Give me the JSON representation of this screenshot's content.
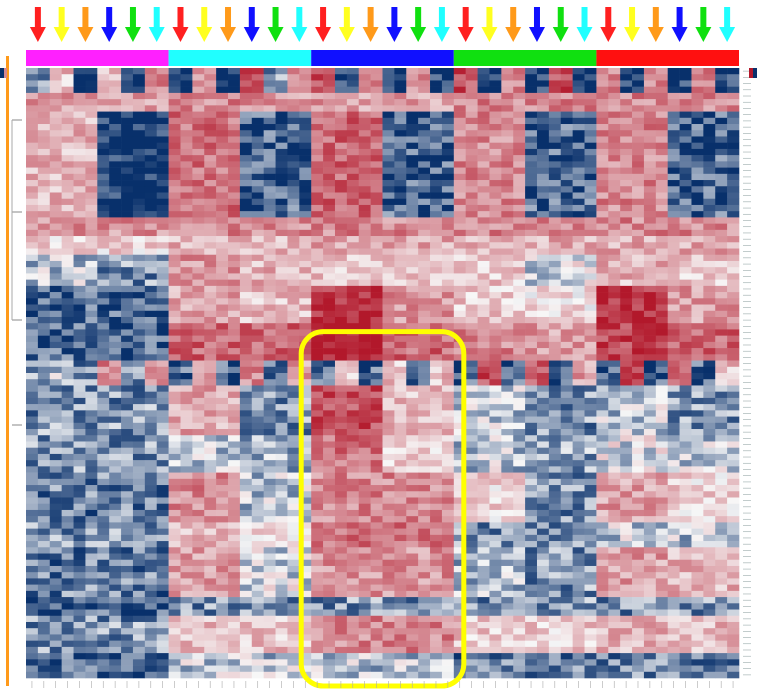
{
  "chart_data": {
    "type": "heatmap",
    "title": "",
    "xlabel": "",
    "ylabel": "",
    "colorscale": {
      "low": "#08306b",
      "mid": "#f7f7f7",
      "high": "#b2182b",
      "range": [
        -2,
        2
      ]
    },
    "arrow_sequence": [
      "red",
      "yellow",
      "orange",
      "blue",
      "green",
      "cyan"
    ],
    "arrow_colors": {
      "red": "#ff2020",
      "yellow": "#ffff20",
      "orange": "#ff9a1a",
      "blue": "#1010ff",
      "green": "#10e010",
      "cyan": "#20ffff"
    },
    "column_groups": [
      {
        "color": "#ff20ff",
        "count": 6
      },
      {
        "color": "#20ffff",
        "count": 6
      },
      {
        "color": "#1010ff",
        "count": 6
      },
      {
        "color": "#10e010",
        "count": 6
      },
      {
        "color": "#ff1010",
        "count": 6
      }
    ],
    "row_cluster_bar_color": "#ff9a1a",
    "highlight": {
      "color": "#ffff00",
      "group_index": 2,
      "row_range_fraction": [
        0.455,
        1.0
      ]
    },
    "bands": [
      {
        "rows": 4,
        "p": [
          [
            -1,
            0.5,
            -2,
            0.5,
            -2,
            1
          ],
          [
            -2,
            1,
            -2,
            1.5,
            -1,
            1
          ],
          [
            1.5,
            -2,
            1,
            -2,
            1,
            -2
          ],
          [
            1.5,
            -2,
            1,
            -2,
            1.5,
            -2
          ],
          [
            1,
            -2,
            1,
            -2,
            1,
            -2
          ]
        ]
      },
      {
        "rows": 3,
        "p": [
          [
            0.8,
            0.8,
            0.8,
            0.8,
            0.8,
            0.8
          ],
          [
            1,
            1,
            1,
            1,
            0.8,
            0.8
          ],
          [
            0.8,
            0.8,
            0.8,
            0.8,
            0.8,
            0.8
          ],
          [
            1,
            1,
            1,
            1,
            1,
            1
          ],
          [
            1,
            1,
            1,
            1,
            1,
            1
          ]
        ]
      },
      {
        "rows": 17,
        "p": [
          [
            0.6,
            0.6,
            0.6,
            -2,
            -2,
            -2
          ],
          [
            1.2,
            1.2,
            1.2,
            -1.5,
            -1.5,
            -1.5
          ],
          [
            1.3,
            1.3,
            1.3,
            -1.5,
            -1.5,
            -1.5
          ],
          [
            1,
            1,
            1,
            -1.5,
            -1.5,
            -1.5
          ],
          [
            1,
            1,
            1,
            -1.5,
            -1.5,
            -1.5
          ]
        ]
      },
      {
        "rows": 3,
        "p": [
          [
            0.9,
            0.9,
            0.9,
            0.9,
            0.9,
            0.9
          ],
          [
            1,
            1,
            1,
            1,
            1,
            1
          ],
          [
            1,
            1,
            1,
            1,
            1,
            1
          ],
          [
            1,
            1,
            1,
            1,
            1,
            1
          ],
          [
            1,
            1,
            1,
            1,
            1,
            1
          ]
        ]
      },
      {
        "rows": 3,
        "p": [
          [
            0.3,
            0.3,
            0.3,
            0.3,
            0.3,
            0.3
          ],
          [
            0.6,
            0.6,
            0.6,
            0.6,
            0.6,
            0.6
          ],
          [
            0.7,
            0.7,
            0.7,
            0.7,
            0.7,
            0.7
          ],
          [
            0.7,
            0.7,
            0.7,
            0.7,
            0.7,
            0.7
          ],
          [
            0.7,
            0.7,
            0.7,
            0.7,
            0.7,
            0.7
          ]
        ]
      },
      {
        "rows": 5,
        "p": [
          [
            -0.5,
            -0.5,
            -0.5,
            -1,
            -1,
            -1
          ],
          [
            0.9,
            0.9,
            0.9,
            0.6,
            0.6,
            0.6
          ],
          [
            0.5,
            0.5,
            0.5,
            0.5,
            0.5,
            0.5
          ],
          [
            0.4,
            0.4,
            0.4,
            -0.3,
            -0.3,
            -0.3
          ],
          [
            0.6,
            0.6,
            0.6,
            0.4,
            0.4,
            0.4
          ]
        ]
      },
      {
        "rows": 6,
        "p": [
          [
            -1.5,
            -1.5,
            -1.5,
            -1.5,
            -1.5,
            -1.5
          ],
          [
            0.7,
            0.7,
            0.7,
            0.5,
            0.5,
            0.5
          ],
          [
            1.8,
            1.8,
            1.8,
            0.9,
            0.9,
            0.9
          ],
          [
            0.4,
            0.4,
            0.4,
            0.2,
            0.2,
            0.2
          ],
          [
            1.8,
            1.8,
            1.8,
            0.8,
            0.8,
            0.8
          ]
        ]
      },
      {
        "rows": 6,
        "p": [
          [
            -1.5,
            -1.5,
            -1.5,
            -1.5,
            -1.5,
            -1.5
          ],
          [
            1.3,
            1.3,
            1.3,
            1.3,
            1.3,
            1.3
          ],
          [
            2,
            2,
            2,
            1.3,
            1.3,
            1.3
          ],
          [
            1,
            1,
            1,
            0.8,
            0.8,
            0.8
          ],
          [
            1.6,
            1.6,
            1.6,
            1.3,
            1.3,
            1.3
          ]
        ]
      },
      {
        "rows": 4,
        "p": [
          [
            -1,
            -0.5,
            -1,
            1,
            -1,
            1
          ],
          [
            -1.5,
            0.8,
            -1.5,
            1,
            -1.5,
            0.8
          ],
          [
            -1.5,
            0.5,
            -1.5,
            0.5,
            -1.5,
            0.5
          ],
          [
            -1.5,
            1.5,
            -1.5,
            1.5,
            -1.5,
            0.8
          ],
          [
            -1.5,
            1.5,
            -1.5,
            1.5,
            -1.5,
            0.5
          ]
        ]
      },
      {
        "rows": 8,
        "p": [
          [
            -1,
            -1,
            -1,
            -1,
            -1,
            -1
          ],
          [
            0.7,
            0.7,
            0.7,
            -1,
            -1,
            -1
          ],
          [
            1.5,
            1.5,
            1.5,
            0.5,
            0.5,
            0.5
          ],
          [
            -0.5,
            -0.5,
            -0.5,
            -1,
            -1,
            -1
          ],
          [
            -0.5,
            -0.5,
            -0.5,
            -1,
            -1,
            -1
          ]
        ]
      },
      {
        "rows": 6,
        "p": [
          [
            -1,
            -1,
            -1,
            -1,
            -1,
            -1
          ],
          [
            -0.5,
            -0.5,
            -0.5,
            -0.8,
            -0.8,
            -0.8
          ],
          [
            1.2,
            1.2,
            1.2,
            0.4,
            0.4,
            0.4
          ],
          [
            -0.5,
            -0.5,
            -0.5,
            -0.8,
            -0.8,
            -0.8
          ],
          [
            -0.3,
            -0.3,
            -0.3,
            -0.5,
            -0.5,
            -0.5
          ]
        ]
      },
      {
        "rows": 8,
        "p": [
          [
            -1.2,
            -1.2,
            -1.2,
            -1.2,
            -1.2,
            -1.2
          ],
          [
            1,
            1,
            1,
            -0.5,
            -0.5,
            -0.5
          ],
          [
            1,
            1,
            1,
            1,
            1,
            1
          ],
          [
            0.3,
            0.3,
            0.3,
            -1,
            -1,
            -1
          ],
          [
            0.8,
            0.8,
            0.8,
            0.3,
            0.3,
            0.3
          ]
        ]
      },
      {
        "rows": 4,
        "p": [
          [
            -1,
            -1,
            -1,
            -1,
            -1,
            -1
          ],
          [
            0.5,
            0.5,
            0.5,
            0.3,
            0.3,
            0.3
          ],
          [
            1.2,
            1.2,
            1.2,
            1.2,
            1.2,
            1.2
          ],
          [
            -1,
            -1,
            -1,
            -1,
            -1,
            -1
          ],
          [
            -0.5,
            -0.5,
            -0.5,
            -0.5,
            -0.5,
            -0.5
          ]
        ]
      },
      {
        "rows": 8,
        "p": [
          [
            -1.2,
            -1.2,
            -1.2,
            -1.2,
            -1.2,
            -1.2
          ],
          [
            0.8,
            0.8,
            0.8,
            -0.3,
            -0.3,
            -0.3
          ],
          [
            0.9,
            0.9,
            0.9,
            0.9,
            0.9,
            0.9
          ],
          [
            -0.6,
            -0.6,
            -0.6,
            -1,
            -1,
            -1
          ],
          [
            0.8,
            0.8,
            0.8,
            0.6,
            0.6,
            0.6
          ]
        ]
      },
      {
        "rows": 3,
        "p": [
          [
            -1.5,
            -1.5,
            -1.5,
            -1.5,
            -1.5,
            -1.5
          ],
          [
            -1,
            -1,
            -1,
            -1,
            -1,
            -1
          ],
          [
            -1,
            -1,
            -1,
            -1,
            -1,
            -1
          ],
          [
            -1,
            -1,
            -1,
            -1,
            -1,
            -1
          ],
          [
            -1,
            -1,
            -1,
            -1,
            -1,
            -1
          ]
        ]
      },
      {
        "rows": 6,
        "p": [
          [
            -1,
            -1,
            -1,
            -1,
            -1,
            -1
          ],
          [
            0.5,
            0.5,
            0.5,
            0.5,
            0.5,
            0.5
          ],
          [
            1,
            1,
            1,
            1,
            1,
            1
          ],
          [
            0.4,
            0.4,
            0.4,
            0.4,
            0.4,
            0.4
          ],
          [
            0.6,
            0.6,
            0.6,
            0.6,
            0.6,
            0.6
          ]
        ]
      },
      {
        "rows": 4,
        "p": [
          [
            -1.5,
            -1.5,
            -1.5,
            -1.5,
            -1.5,
            -1.5
          ],
          [
            -0.5,
            -0.5,
            -0.5,
            -0.5,
            -0.5,
            -0.5
          ],
          [
            -0.5,
            -0.5,
            -0.5,
            -0.5,
            -0.5,
            -0.5
          ],
          [
            -1.2,
            -1.2,
            -1.2,
            -1.2,
            -1.2,
            -1.2
          ],
          [
            -1.2,
            -1.2,
            -1.2,
            -1.2,
            -1.2,
            -1.2
          ]
        ]
      }
    ]
  }
}
